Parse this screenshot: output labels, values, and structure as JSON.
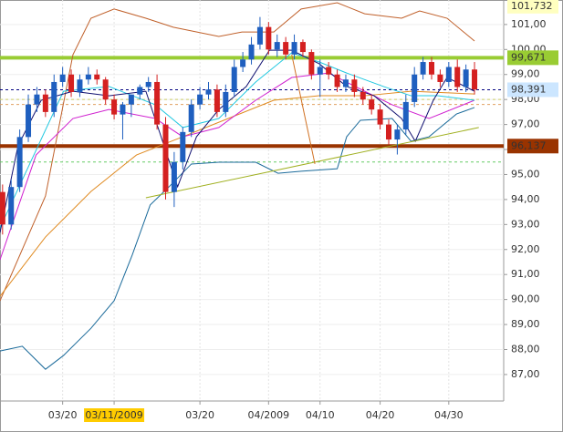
{
  "chart_data": {
    "type": "candlestick",
    "open": [
      94.3,
      93.0,
      94.5,
      96.5,
      97.8,
      98.2,
      97.5,
      98.7,
      99.0,
      98.3,
      98.8,
      99.0,
      98.8,
      98.0,
      97.4,
      97.8,
      98.2,
      98.5,
      98.7,
      97.0,
      94.3,
      95.5,
      96.7,
      97.8,
      98.2,
      98.4,
      97.5,
      98.3,
      99.3,
      99.6,
      100.2,
      100.9,
      100.0,
      100.3,
      99.8,
      100.3,
      99.9,
      99.0,
      99.3,
      99.0,
      98.5,
      98.8,
      98.3,
      98.0,
      97.6,
      97.0,
      96.4,
      96.8,
      97.9,
      99.0,
      99.5,
      99.0,
      98.7,
      99.3,
      98.5,
      99.2
    ],
    "high": [
      94.6,
      94.8,
      96.8,
      98.2,
      98.5,
      98.4,
      99.0,
      99.3,
      99.2,
      99.0,
      99.3,
      99.2,
      98.9,
      98.2,
      97.9,
      98.2,
      98.6,
      98.9,
      99.0,
      97.3,
      95.9,
      96.9,
      98.0,
      98.5,
      98.7,
      98.6,
      98.6,
      99.6,
      99.9,
      100.5,
      101.3,
      101.1,
      100.6,
      100.5,
      100.6,
      100.4,
      100.0,
      99.6,
      99.5,
      99.2,
      99.0,
      99.0,
      98.5,
      98.2,
      97.8,
      97.2,
      97.0,
      98.2,
      99.3,
      99.7,
      99.7,
      99.2,
      99.5,
      99.6,
      99.4,
      99.5
    ],
    "low": [
      92.6,
      92.8,
      94.3,
      96.3,
      97.5,
      97.3,
      97.3,
      98.5,
      98.1,
      98.1,
      98.6,
      98.6,
      97.8,
      97.2,
      96.4,
      97.3,
      98.0,
      98.3,
      96.8,
      94.0,
      93.7,
      95.2,
      96.5,
      97.6,
      98.0,
      97.3,
      97.3,
      98.1,
      99.1,
      99.4,
      100.0,
      99.8,
      99.7,
      99.6,
      99.6,
      99.7,
      98.8,
      98.1,
      98.8,
      98.3,
      98.3,
      98.1,
      97.8,
      97.4,
      96.8,
      96.2,
      95.8,
      96.6,
      97.7,
      98.8,
      98.8,
      98.5,
      98.5,
      98.3,
      98.3,
      98.2
    ],
    "close": [
      93.0,
      94.5,
      96.5,
      97.8,
      98.2,
      97.5,
      98.7,
      99.0,
      98.3,
      98.8,
      99.0,
      98.8,
      98.0,
      97.4,
      97.8,
      98.2,
      98.5,
      98.7,
      97.0,
      94.3,
      95.5,
      96.7,
      97.8,
      98.2,
      98.4,
      97.5,
      98.3,
      99.3,
      99.6,
      100.2,
      100.9,
      100.0,
      100.3,
      99.8,
      100.3,
      99.9,
      99.0,
      99.3,
      99.0,
      98.5,
      98.8,
      98.3,
      98.0,
      97.6,
      97.0,
      96.4,
      96.8,
      97.9,
      99.0,
      99.5,
      99.0,
      98.7,
      99.3,
      98.5,
      99.2,
      98.4
    ],
    "up_color": "#1f5fbf",
    "down_color": "#d42020",
    "lines": [
      {
        "color": "#c0602a",
        "x": [
          -0.3,
          5,
          8.2,
          10.3,
          13,
          16.7,
          19.9,
          25.2,
          27.9,
          31.6,
          34.8,
          39,
          42.2,
          46.5,
          48.6,
          51.8,
          55
        ],
        "values": [
          89.95,
          94.14,
          99.79,
          101.25,
          101.62,
          101.25,
          100.89,
          100.52,
          100.7,
          100.7,
          101.62,
          101.87,
          101.43,
          101.25,
          101.54,
          101.25,
          100.34
        ]
      },
      {
        "color": "#1a6a9a",
        "x": [
          -0.3,
          2.3,
          5,
          7.1,
          10.3,
          13,
          15.1,
          17.2,
          19.4,
          22,
          25.2,
          29.5,
          32.1,
          34.8,
          39,
          40.1,
          41.7,
          45.4,
          47.6,
          49.7,
          52.9,
          55
        ],
        "values": [
          87.94,
          88.13,
          87.21,
          87.76,
          88.85,
          89.95,
          91.77,
          93.78,
          94.51,
          95.42,
          95.49,
          95.49,
          95.05,
          95.13,
          95.23,
          96.51,
          97.17,
          97.24,
          96.33,
          96.51,
          97.42,
          97.68
        ]
      },
      {
        "color": "#e08a20",
        "x": [
          -0.3,
          5,
          10.3,
          15.6,
          21,
          26.3,
          31.6,
          36.9,
          42.2,
          47.6,
          55
        ],
        "values": [
          90.13,
          92.5,
          94.32,
          95.78,
          96.51,
          97.24,
          97.97,
          98.15,
          98.15,
          98.33,
          98.22
        ]
      },
      {
        "color": "#d020d0",
        "x": [
          -0.3,
          3.9,
          8.2,
          12.4,
          17.8,
          21,
          25.2,
          29.5,
          33.7,
          38,
          42.2,
          45.4,
          49.7,
          55
        ],
        "values": [
          91.59,
          95.78,
          97.24,
          97.6,
          97.24,
          96.51,
          96.88,
          97.97,
          98.88,
          99.06,
          98.33,
          97.79,
          97.24,
          97.97
        ]
      },
      {
        "color": "#20c8e0",
        "x": [
          -0.3,
          7.1,
          12.4,
          17.8,
          21,
          25.2,
          29.5,
          33.7,
          36.9,
          40.1,
          44.4,
          47.6,
          50.7,
          55
        ],
        "values": [
          92.87,
          98.33,
          98.52,
          97.79,
          96.88,
          97.24,
          98.7,
          99.87,
          99.5,
          99.06,
          98.52,
          98.15,
          98.15,
          97.97
        ]
      },
      {
        "color": "#101070",
        "x": [
          -0.3,
          1.8,
          4.5,
          8.2,
          12.4,
          16.7,
          18.3,
          20.4,
          22.6,
          25.2,
          28.4,
          31.1,
          33.7,
          36.9,
          40.1,
          43.3,
          46.5,
          48.1,
          50.2,
          51.8,
          55
        ],
        "values": [
          92.68,
          96.15,
          97.97,
          98.33,
          98.15,
          98.33,
          96.69,
          94.51,
          96.51,
          97.6,
          98.52,
          99.97,
          99.97,
          99.43,
          98.52,
          98.15,
          97.24,
          96.33,
          97.97,
          98.88,
          98.33
        ]
      },
      {
        "color": "#a0b020",
        "x": [
          16.7,
          55.5
        ],
        "values": [
          94.07,
          96.88
        ]
      },
      {
        "color": "#d07020",
        "x": [
          33.7,
          36.4
        ],
        "values": [
          99.79,
          95.42
        ]
      }
    ],
    "levels": [
      {
        "value": 99.671,
        "color": "#99cc33",
        "style": "thick"
      },
      {
        "value": 96.137,
        "color": "#993300",
        "style": "thick"
      },
      {
        "value": 98.391,
        "color": "#000080",
        "style": "dashed"
      },
      {
        "value": 98.0,
        "color": "#cccc66",
        "style": "dashed"
      },
      {
        "value": 97.8,
        "color": "#e0a060",
        "style": "dashed"
      },
      {
        "value": 95.5,
        "color": "#66cc66",
        "style": "dashed"
      }
    ],
    "price_labels": [
      {
        "value": 101.732,
        "label": "101,732",
        "color": "#ffffc0",
        "text_color": "#333333"
      },
      {
        "value": 99.671,
        "label": "99,671",
        "color": "#99cc33",
        "text_color": "#333333"
      },
      {
        "value": 98.391,
        "label": "98,391",
        "color": "#cce6ff",
        "text_color": "#333333"
      },
      {
        "value": 96.137,
        "label": "96,137",
        "color": "#993300",
        "text_color": "#ffffff"
      }
    ],
    "xlim": [
      -0.3,
      58.4
    ],
    "xticks": [
      {
        "value": 7,
        "label": "03/20"
      },
      {
        "value": 13,
        "label": "03/11/2009",
        "highlight": "#ffcc00"
      },
      {
        "value": 23,
        "label": "03/20"
      },
      {
        "value": 31,
        "label": "04/2009"
      },
      {
        "value": 37,
        "label": "04/10"
      },
      {
        "value": 44,
        "label": "04/20"
      },
      {
        "value": 52,
        "label": "04/30"
      }
    ],
    "ylim": [
      85.94,
      101.98
    ],
    "yticks": [
      {
        "value": 87,
        "label": "87,00"
      },
      {
        "value": 88,
        "label": "88,00"
      },
      {
        "value": 89,
        "label": "89,00"
      },
      {
        "value": 90,
        "label": "90,00"
      },
      {
        "value": 91,
        "label": "91,00"
      },
      {
        "value": 92,
        "label": "92,00"
      },
      {
        "value": 93,
        "label": "93,00"
      },
      {
        "value": 94,
        "label": "94,00"
      },
      {
        "value": 95,
        "label": "95,00"
      },
      {
        "value": 96,
        "label": "96,00"
      },
      {
        "value": 97,
        "label": "97,00"
      },
      {
        "value": 98,
        "label": "98,00"
      },
      {
        "value": 99,
        "label": "99,00"
      },
      {
        "value": 100,
        "label": "100,00"
      },
      {
        "value": 101,
        "label": "101,00"
      }
    ],
    "grid": true
  }
}
